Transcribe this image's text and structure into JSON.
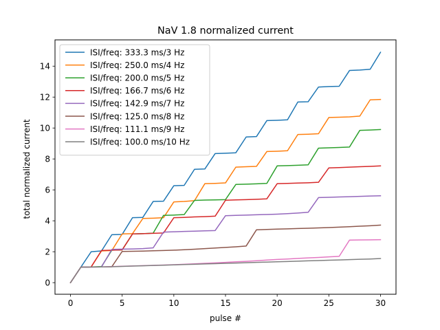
{
  "chart_data": {
    "type": "line",
    "title": "NaV 1.8 normalized current",
    "xlabel": "pulse #",
    "ylabel": "total normalized current",
    "xlim": [
      -1.5,
      31.5
    ],
    "ylim": [
      -0.75,
      15.7
    ],
    "xticks": [
      0,
      5,
      10,
      15,
      20,
      25,
      30
    ],
    "yticks": [
      0,
      2,
      4,
      6,
      8,
      10,
      12,
      14
    ],
    "grid": false,
    "legend_position": "upper-left",
    "series": [
      {
        "name": "ISI/freq: 333.3 ms/3 Hz",
        "color": "#1f77b4",
        "points": [
          [
            0,
            0
          ],
          [
            1,
            1
          ],
          [
            2,
            2
          ],
          [
            3,
            2.05
          ],
          [
            4,
            3.1
          ],
          [
            5,
            3.12
          ],
          [
            6,
            4.2
          ],
          [
            7,
            4.22
          ],
          [
            8,
            5.25
          ],
          [
            9,
            5.27
          ],
          [
            10,
            6.27
          ],
          [
            11,
            6.29
          ],
          [
            12,
            7.33
          ],
          [
            13,
            7.35
          ],
          [
            14,
            8.35
          ],
          [
            15,
            8.37
          ],
          [
            16,
            8.4
          ],
          [
            17,
            9.42
          ],
          [
            18,
            9.45
          ],
          [
            19,
            10.48
          ],
          [
            20,
            10.5
          ],
          [
            21,
            10.53
          ],
          [
            22,
            11.68
          ],
          [
            23,
            11.7
          ],
          [
            24,
            12.65
          ],
          [
            25,
            12.68
          ],
          [
            26,
            12.7
          ],
          [
            27,
            13.72
          ],
          [
            28,
            13.75
          ],
          [
            29,
            13.8
          ],
          [
            30,
            14.9
          ]
        ]
      },
      {
        "name": "ISI/freq: 250.0 ms/4 Hz",
        "color": "#ff7f0e",
        "points": [
          [
            0,
            0
          ],
          [
            1,
            1
          ],
          [
            2,
            1.02
          ],
          [
            3,
            2.05
          ],
          [
            4,
            2.08
          ],
          [
            5,
            3.15
          ],
          [
            6,
            3.17
          ],
          [
            7,
            4.15
          ],
          [
            8,
            4.17
          ],
          [
            9,
            4.2
          ],
          [
            10,
            5.22
          ],
          [
            11,
            5.25
          ],
          [
            12,
            5.3
          ],
          [
            13,
            6.4
          ],
          [
            14,
            6.42
          ],
          [
            15,
            6.45
          ],
          [
            16,
            7.47
          ],
          [
            17,
            7.5
          ],
          [
            18,
            7.52
          ],
          [
            19,
            8.48
          ],
          [
            20,
            8.5
          ],
          [
            21,
            8.53
          ],
          [
            22,
            9.58
          ],
          [
            23,
            9.6
          ],
          [
            24,
            9.63
          ],
          [
            25,
            10.68
          ],
          [
            26,
            10.7
          ],
          [
            27,
            10.72
          ],
          [
            28,
            10.77
          ],
          [
            29,
            11.82
          ],
          [
            30,
            11.85
          ]
        ]
      },
      {
        "name": "ISI/freq: 200.0 ms/5 Hz",
        "color": "#2ca02c",
        "points": [
          [
            0,
            0
          ],
          [
            1,
            1
          ],
          [
            2,
            1.02
          ],
          [
            3,
            1.04
          ],
          [
            4,
            2.1
          ],
          [
            5,
            2.12
          ],
          [
            6,
            3.15
          ],
          [
            7,
            3.17
          ],
          [
            8,
            3.2
          ],
          [
            9,
            4.35
          ],
          [
            10,
            4.37
          ],
          [
            11,
            4.4
          ],
          [
            12,
            5.32
          ],
          [
            13,
            5.34
          ],
          [
            14,
            5.35
          ],
          [
            15,
            5.37
          ],
          [
            16,
            6.35
          ],
          [
            17,
            6.37
          ],
          [
            18,
            6.39
          ],
          [
            19,
            6.42
          ],
          [
            20,
            7.55
          ],
          [
            21,
            7.57
          ],
          [
            22,
            7.59
          ],
          [
            23,
            7.62
          ],
          [
            24,
            8.7
          ],
          [
            25,
            8.72
          ],
          [
            26,
            8.74
          ],
          [
            27,
            8.77
          ],
          [
            28,
            9.85
          ],
          [
            29,
            9.87
          ],
          [
            30,
            9.9
          ]
        ]
      },
      {
        "name": "ISI/freq: 166.7 ms/6 Hz",
        "color": "#d62728",
        "points": [
          [
            0,
            0
          ],
          [
            1,
            1
          ],
          [
            2,
            1.02
          ],
          [
            3,
            2.08
          ],
          [
            4,
            2.1
          ],
          [
            5,
            2.12
          ],
          [
            6,
            3.15
          ],
          [
            7,
            3.17
          ],
          [
            8,
            3.19
          ],
          [
            9,
            3.21
          ],
          [
            10,
            4.2
          ],
          [
            11,
            4.22
          ],
          [
            12,
            4.25
          ],
          [
            13,
            4.27
          ],
          [
            14,
            4.3
          ],
          [
            15,
            5.33
          ],
          [
            16,
            5.35
          ],
          [
            17,
            5.37
          ],
          [
            18,
            5.39
          ],
          [
            19,
            5.42
          ],
          [
            20,
            6.4
          ],
          [
            21,
            6.42
          ],
          [
            22,
            6.44
          ],
          [
            23,
            6.46
          ],
          [
            24,
            6.49
          ],
          [
            25,
            7.42
          ],
          [
            26,
            7.44
          ],
          [
            27,
            7.47
          ],
          [
            28,
            7.5
          ],
          [
            29,
            7.52
          ],
          [
            30,
            7.55
          ]
        ]
      },
      {
        "name": "ISI/freq: 142.9 ms/7 Hz",
        "color": "#9467bd",
        "points": [
          [
            0,
            0
          ],
          [
            1,
            1
          ],
          [
            2,
            1.01
          ],
          [
            3,
            1.02
          ],
          [
            4,
            2.15
          ],
          [
            5,
            2.17
          ],
          [
            6,
            2.18
          ],
          [
            7,
            2.2
          ],
          [
            8,
            2.25
          ],
          [
            9,
            3.27
          ],
          [
            10,
            3.29
          ],
          [
            11,
            3.31
          ],
          [
            12,
            3.33
          ],
          [
            13,
            3.35
          ],
          [
            14,
            3.37
          ],
          [
            15,
            4.33
          ],
          [
            16,
            4.35
          ],
          [
            17,
            4.37
          ],
          [
            18,
            4.39
          ],
          [
            19,
            4.41
          ],
          [
            20,
            4.43
          ],
          [
            21,
            4.46
          ],
          [
            22,
            4.5
          ],
          [
            23,
            4.55
          ],
          [
            24,
            5.5
          ],
          [
            25,
            5.52
          ],
          [
            26,
            5.54
          ],
          [
            27,
            5.56
          ],
          [
            28,
            5.58
          ],
          [
            29,
            5.6
          ],
          [
            30,
            5.62
          ]
        ]
      },
      {
        "name": "ISI/freq: 125.0 ms/8 Hz",
        "color": "#8c564b",
        "points": [
          [
            0,
            0
          ],
          [
            1,
            1
          ],
          [
            2,
            1.01
          ],
          [
            3,
            1.02
          ],
          [
            4,
            1.03
          ],
          [
            5,
            2.02
          ],
          [
            6,
            2.03
          ],
          [
            7,
            2.04
          ],
          [
            8,
            2.06
          ],
          [
            9,
            2.08
          ],
          [
            10,
            2.1
          ],
          [
            11,
            2.13
          ],
          [
            12,
            2.16
          ],
          [
            13,
            2.2
          ],
          [
            14,
            2.24
          ],
          [
            15,
            2.28
          ],
          [
            16,
            2.32
          ],
          [
            17,
            2.37
          ],
          [
            18,
            3.42
          ],
          [
            19,
            3.44
          ],
          [
            20,
            3.46
          ],
          [
            21,
            3.48
          ],
          [
            22,
            3.5
          ],
          [
            23,
            3.52
          ],
          [
            24,
            3.54
          ],
          [
            25,
            3.56
          ],
          [
            26,
            3.59
          ],
          [
            27,
            3.62
          ],
          [
            28,
            3.65
          ],
          [
            29,
            3.68
          ],
          [
            30,
            3.72
          ]
        ]
      },
      {
        "name": "ISI/freq: 111.1 ms/9 Hz",
        "color": "#e377c2",
        "points": [
          [
            0,
            0
          ],
          [
            1,
            1
          ],
          [
            2,
            1.01
          ],
          [
            3,
            1.02
          ],
          [
            4,
            1.04
          ],
          [
            5,
            1.06
          ],
          [
            6,
            1.08
          ],
          [
            7,
            1.1
          ],
          [
            8,
            1.12
          ],
          [
            9,
            1.14
          ],
          [
            10,
            1.16
          ],
          [
            11,
            1.19
          ],
          [
            12,
            1.22
          ],
          [
            13,
            1.25
          ],
          [
            14,
            1.28
          ],
          [
            15,
            1.31
          ],
          [
            16,
            1.35
          ],
          [
            17,
            1.38
          ],
          [
            18,
            1.42
          ],
          [
            19,
            1.46
          ],
          [
            20,
            1.5
          ],
          [
            21,
            1.53
          ],
          [
            22,
            1.57
          ],
          [
            23,
            1.6
          ],
          [
            24,
            1.63
          ],
          [
            25,
            1.67
          ],
          [
            26,
            1.7
          ],
          [
            27,
            2.75
          ],
          [
            28,
            2.76
          ],
          [
            29,
            2.77
          ],
          [
            30,
            2.78
          ]
        ]
      },
      {
        "name": "ISI/freq: 100.0 ms/10 Hz",
        "color": "#7f7f7f",
        "points": [
          [
            0,
            0
          ],
          [
            1,
            1
          ],
          [
            2,
            1.01
          ],
          [
            3,
            1.02
          ],
          [
            4,
            1.03
          ],
          [
            5,
            1.05
          ],
          [
            6,
            1.07
          ],
          [
            7,
            1.09
          ],
          [
            8,
            1.11
          ],
          [
            9,
            1.13
          ],
          [
            10,
            1.15
          ],
          [
            11,
            1.17
          ],
          [
            12,
            1.19
          ],
          [
            13,
            1.21
          ],
          [
            14,
            1.23
          ],
          [
            15,
            1.25
          ],
          [
            16,
            1.27
          ],
          [
            17,
            1.29
          ],
          [
            18,
            1.31
          ],
          [
            19,
            1.33
          ],
          [
            20,
            1.35
          ],
          [
            21,
            1.37
          ],
          [
            22,
            1.39
          ],
          [
            23,
            1.41
          ],
          [
            24,
            1.43
          ],
          [
            25,
            1.45
          ],
          [
            26,
            1.47
          ],
          [
            27,
            1.49
          ],
          [
            28,
            1.51
          ],
          [
            29,
            1.53
          ],
          [
            30,
            1.56
          ]
        ]
      }
    ]
  }
}
